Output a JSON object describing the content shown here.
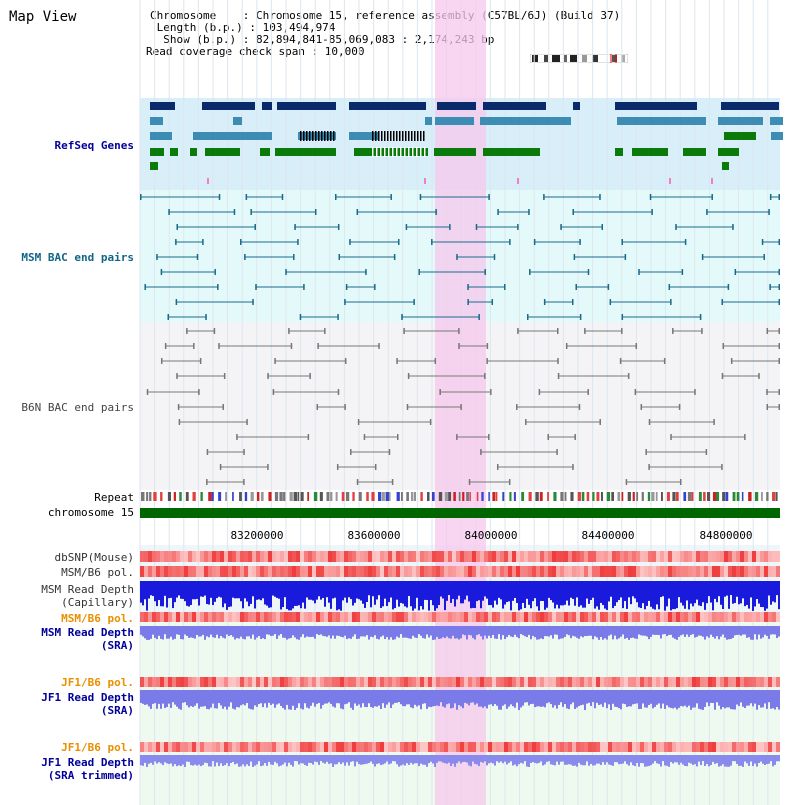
{
  "title": "Map View",
  "info": {
    "chromosome_label": "Chromosome    : Chromosome 15, reference assembly (C57BL/6J) (Build 37)",
    "length_label": " Length (b.p.) : 103,494,974",
    "show_label": "  Show (b.p.) : 82,894,841-85,069,083 : 2,174,243 bp",
    "read_span_label": "Read coverage check span : 10,000"
  },
  "tracks": {
    "refseq": "RefSeq Genes",
    "msm_bac": "MSM BAC end pairs",
    "b6n_bac": "B6N BAC end pairs",
    "repeat": "Repeat",
    "chromosome": "chromosome 15",
    "dbsnp": "dbSNP(Mouse)",
    "msm_b6_pol_1": "MSM/B6 pol.",
    "msm_read_cap_1": "MSM Read Depth",
    "msm_read_cap_2": "(Capillary)",
    "msm_b6_pol_2": "MSM/B6 pol.",
    "msm_read_sra_1": "MSM Read Depth",
    "msm_read_sra_2": "(SRA)",
    "jf1_b6_pol_1": "JF1/B6 pol.",
    "jf1_read_sra_1": "JF1 Read Depth",
    "jf1_read_sra_2": "(SRA)",
    "jf1_b6_pol_2": "JF1/B6 pol.",
    "jf1_read_trim_1": "JF1 Read Depth",
    "jf1_read_trim_2": "(SRA trimmed)"
  },
  "axis": {
    "ticks": [
      "83200000",
      "83600000",
      "84000000",
      "84400000",
      "84800000"
    ]
  },
  "colors": {
    "refseq_dark": "#0a2a6a",
    "refseq_mid": "#3c8cb4",
    "refseq_green": "#0a7a0a",
    "msm_line": "#1a6a8a",
    "b6n_line": "#777777",
    "chrom_bar": "#006600",
    "highlight": "#f5c8ec",
    "label_blue": "#000099",
    "label_teal": "#116688",
    "label_orange": "#e89000"
  }
}
